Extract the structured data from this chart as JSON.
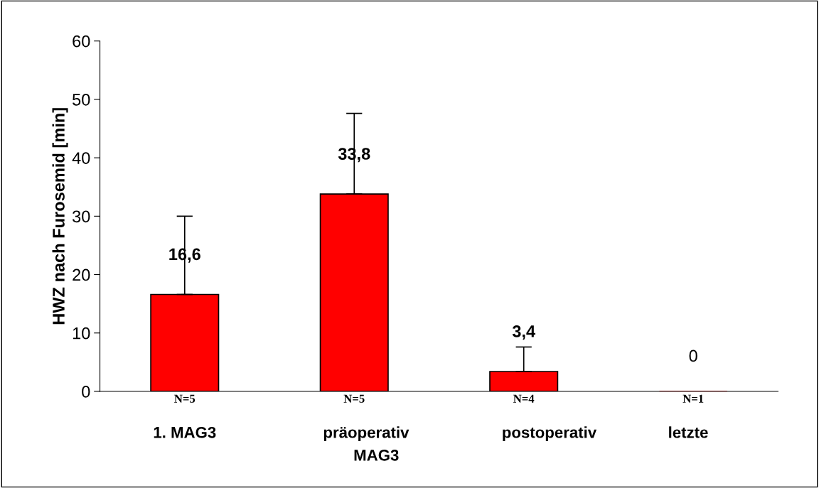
{
  "chart_data": {
    "type": "bar",
    "ylabel": "HWZ nach Furosemid [min]",
    "categories": [
      "N=5",
      "N=5",
      "N=4",
      "N=1"
    ],
    "values": [
      16.6,
      33.8,
      3.4,
      0
    ],
    "value_labels": [
      "16,6",
      "33,8",
      "3,4",
      "0"
    ],
    "errors": [
      [
        16.6,
        30
      ],
      [
        33.8,
        47.6
      ],
      [
        3.4,
        7.6
      ],
      null
    ],
    "color": "#ff0000",
    "ylim": [
      0,
      60
    ],
    "yticks": [
      0,
      10,
      20,
      30,
      40,
      50,
      60
    ],
    "grid": false,
    "legend": false,
    "annotations": [
      "1. MAG3",
      "präoperativ",
      "postoperativ",
      "letzte",
      "MAG3"
    ]
  }
}
